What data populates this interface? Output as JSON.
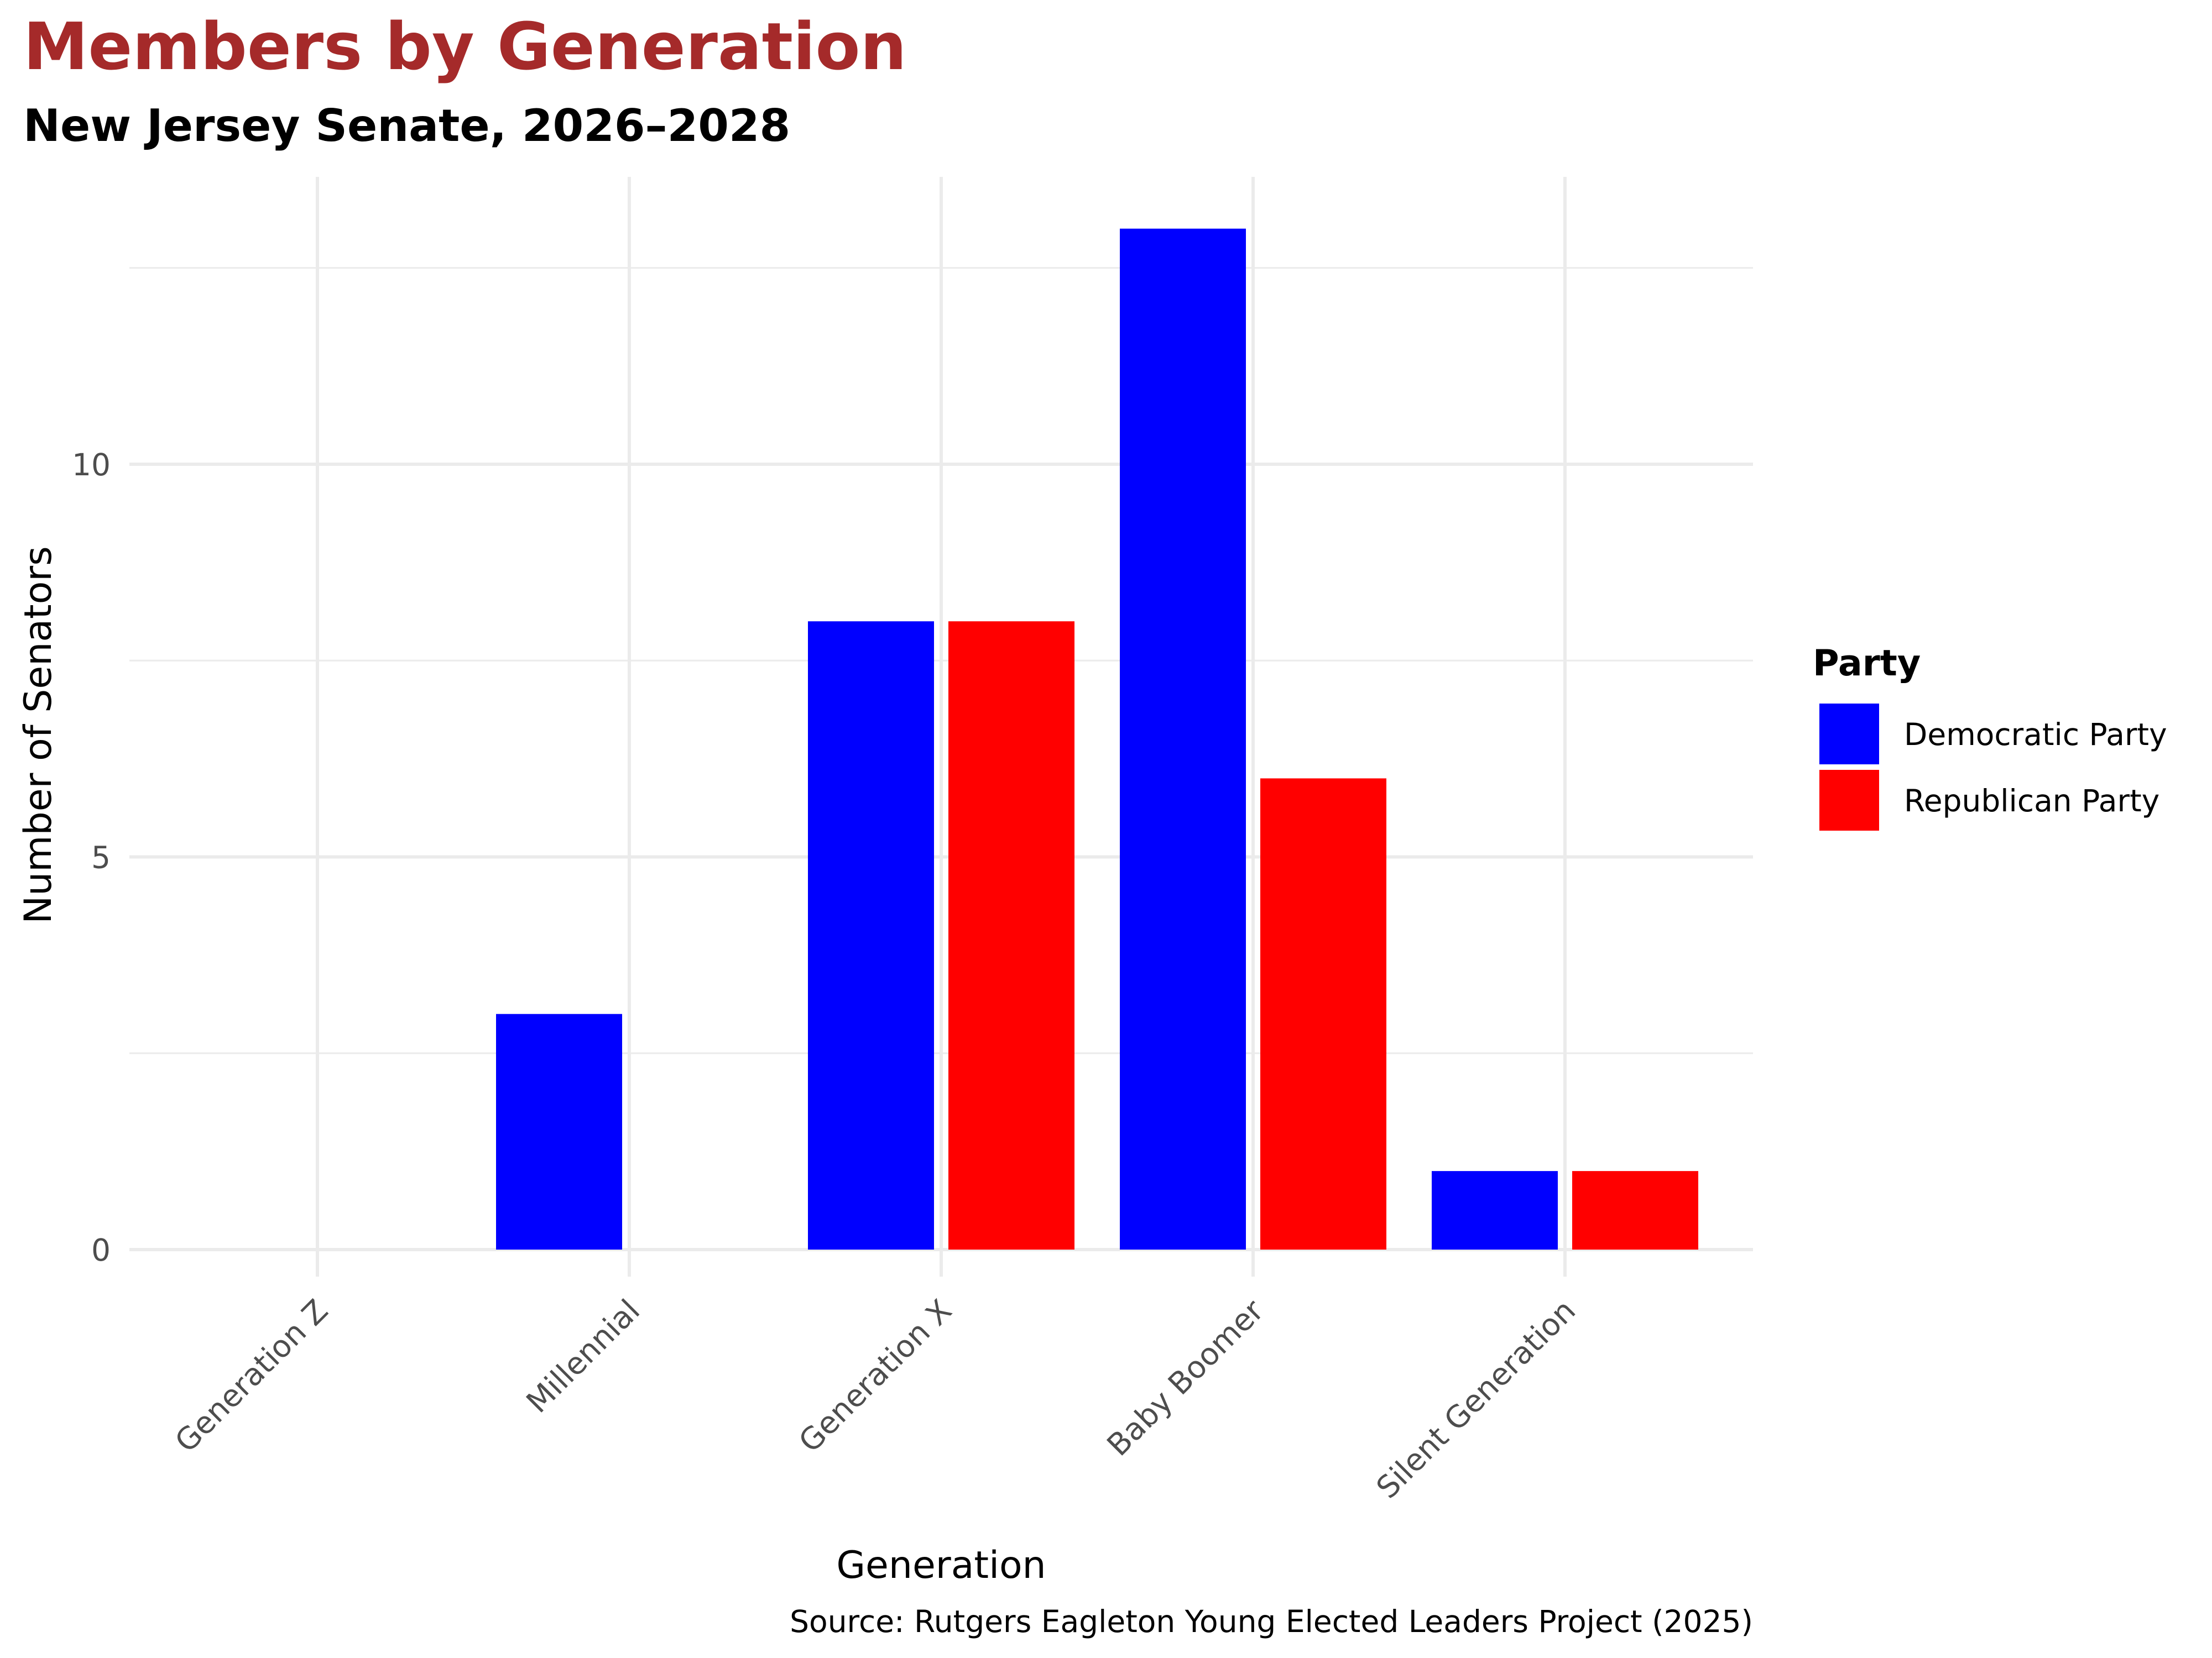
{
  "chart_data": {
    "type": "bar",
    "title": "Members by Generation",
    "subtitle": "New Jersey Senate, 2026–2028",
    "xlabel": "Generation",
    "ylabel": "Number of Senators",
    "caption": "Source: Rutgers Eagleton Young Elected Leaders Project (2025)",
    "categories": [
      "Generation Z",
      "Millennial",
      "Generation X",
      "Baby Boomer",
      "Silent Generation"
    ],
    "series": [
      {
        "name": "Democratic Party",
        "color": "#0000ff",
        "values": [
          0,
          3,
          8,
          13,
          1
        ]
      },
      {
        "name": "Republican Party",
        "color": "#ff0000",
        "values": [
          0,
          0,
          8,
          6,
          1
        ]
      }
    ],
    "ylim": [
      -0.6,
      13.6
    ],
    "yticks": [
      0,
      5,
      10
    ],
    "ytick_labels": [
      "0",
      "5",
      "10"
    ],
    "grid": true,
    "legend": {
      "title": "Party",
      "position": "right"
    },
    "colors": {
      "title": "#a52a2a",
      "grid": "#ebebeb",
      "tick_text": "#4d4d4d"
    }
  }
}
